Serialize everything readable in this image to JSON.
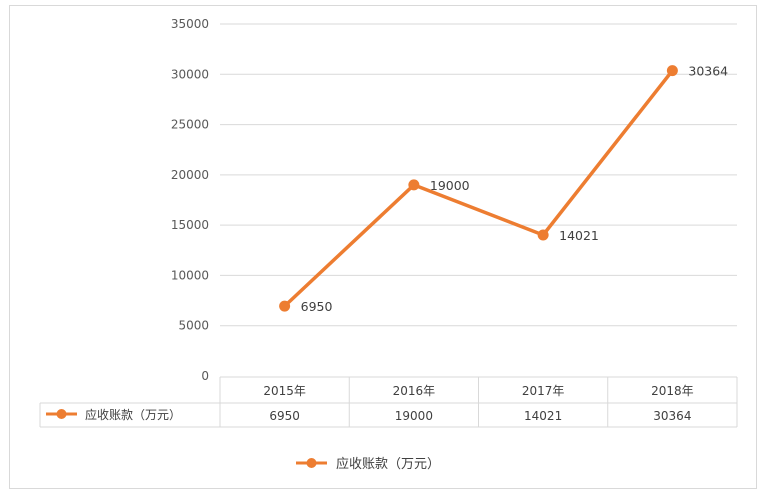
{
  "chart_data": {
    "type": "line",
    "categories": [
      "2015年",
      "2016年",
      "2017年",
      "2018年"
    ],
    "series": [
      {
        "name": "应收账款（万元）",
        "values": [
          6950,
          19000,
          14021,
          30364
        ],
        "color": "#ed7d31"
      }
    ],
    "ylim": [
      0,
      35000
    ],
    "yticks": [
      0,
      5000,
      10000,
      15000,
      20000,
      25000,
      30000,
      35000
    ],
    "grid": true,
    "data_labels": true,
    "data_table": true,
    "legend": "bottom",
    "gridline_color": "#d9d9d9"
  }
}
